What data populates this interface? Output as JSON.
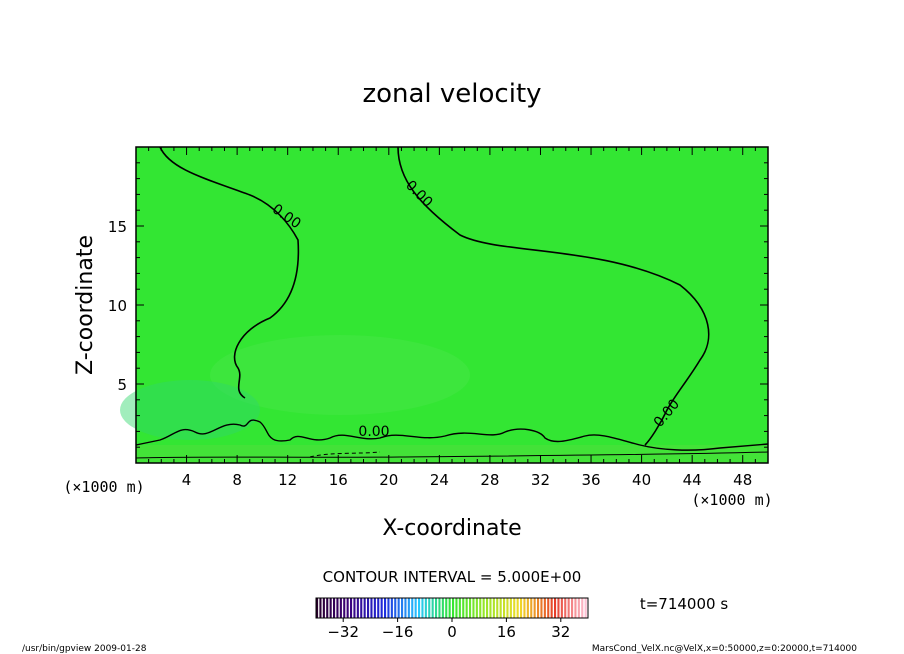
{
  "chart_data": {
    "type": "contour",
    "title": "zonal velocity",
    "xlabel": "X-coordinate",
    "ylabel": "Z-coordinate",
    "x_unit": "(×1000 m)",
    "y_unit": "(×1000 m)",
    "xlim": [
      0,
      50
    ],
    "ylim": [
      0,
      20
    ],
    "x_ticks": [
      4,
      8,
      12,
      16,
      20,
      24,
      28,
      32,
      36,
      40,
      44,
      48
    ],
    "y_ticks": [
      5,
      10,
      15
    ],
    "contour_levels": [
      0
    ],
    "contour_labels": [
      "0.00",
      "0.00",
      "0.00",
      "0.00"
    ],
    "contour_interval": "CONTOUR INTERVAL = 5.000E+00",
    "colorbar": {
      "ticks": [
        -32,
        -16,
        0,
        16,
        32
      ],
      "range": [
        -40,
        40
      ]
    },
    "time_label": "t=714000 s",
    "fill_color": "#33e633"
  },
  "footer": {
    "left": "/usr/bin/gpview  2009-01-28",
    "right": "MarsCond_VelX.nc@VelX,x=0:50000,z=0:20000,t=714000"
  }
}
